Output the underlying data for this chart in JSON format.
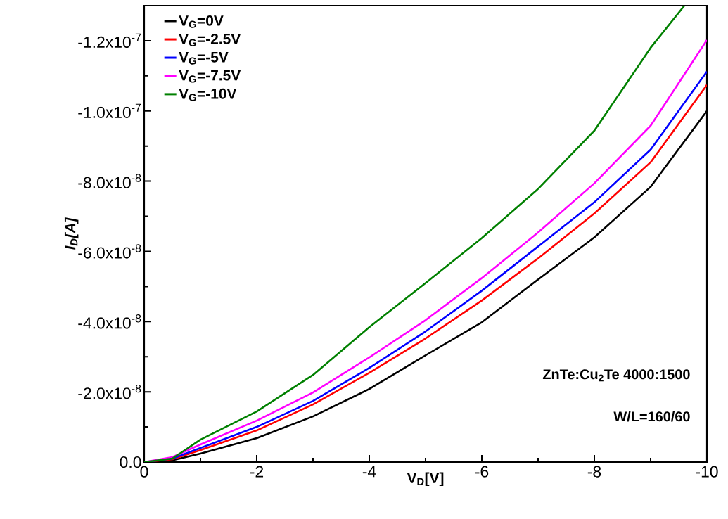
{
  "chart_data": {
    "type": "line",
    "xlabel": "V$_{D}$[V]",
    "ylabel": "I$_{D}$[A]",
    "x": [
      0,
      -0.5,
      -1,
      -2,
      -3,
      -4,
      -5,
      -6,
      -7,
      -8,
      -9,
      -10
    ],
    "xlim": [
      0,
      -10
    ],
    "ylim": [
      0,
      -1.3e-07
    ],
    "xticks": [
      0,
      -2,
      -4,
      -6,
      -8,
      -10
    ],
    "yticks": [
      {
        "value": 0,
        "label": "0.0"
      },
      {
        "value": -2e-08,
        "label": "-2.0x10$^{-8}$"
      },
      {
        "value": -4e-08,
        "label": "-4.0x10$^{-8}$"
      },
      {
        "value": -6e-08,
        "label": "-6.0x10$^{-8}$"
      },
      {
        "value": -8e-08,
        "label": "-8.0x10$^{-8}$"
      },
      {
        "value": -1e-07,
        "label": "-1.0x10$^{-7}$"
      },
      {
        "value": -1.2e-07,
        "label": "-1.2x10$^{-7}$"
      }
    ],
    "series": [
      {
        "name": "V$_{G}$=0V",
        "color": "#000000",
        "values": [
          0,
          -5e-10,
          -2.4e-09,
          -6.8e-09,
          -1.3e-08,
          -2.08e-08,
          -3.04e-08,
          -3.98e-08,
          -5.2e-08,
          -6.4e-08,
          -7.84e-08,
          -1e-07
        ]
      },
      {
        "name": "V$_{G}$=-2.5V",
        "color": "#ff0000",
        "values": [
          0,
          -8e-10,
          -3.4e-09,
          -9e-09,
          -1.64e-08,
          -2.54e-08,
          -3.52e-08,
          -4.6e-08,
          -5.8e-08,
          -7.08e-08,
          -8.54e-08,
          -1.074e-07
        ]
      },
      {
        "name": "V$_{G}$=-5V",
        "color": "#0000ff",
        "values": [
          0,
          -1e-09,
          -4e-09,
          -1e-08,
          -1.74e-08,
          -2.68e-08,
          -3.72e-08,
          -4.88e-08,
          -6.14e-08,
          -7.4e-08,
          -8.9e-08,
          -1.112e-07
        ]
      },
      {
        "name": "V$_{G}$=-7.5V",
        "color": "#ff00ff",
        "values": [
          0,
          -1.4e-09,
          -5e-09,
          -1.18e-08,
          -1.98e-08,
          -2.98e-08,
          -4.04e-08,
          -5.24e-08,
          -6.54e-08,
          -7.94e-08,
          -9.58e-08,
          -1.202e-07
        ]
      },
      {
        "name": "V$_{G}$=-10V",
        "color": "#008000",
        "x": [
          0,
          -0.5,
          -1,
          -2,
          -3,
          -4,
          -5,
          -6,
          -7,
          -8,
          -9,
          -9.6
        ],
        "values": [
          0,
          -1e-09,
          -6.4e-09,
          -1.44e-08,
          -2.48e-08,
          -3.84e-08,
          -5.1e-08,
          -6.38e-08,
          -7.78e-08,
          -9.44e-08,
          -1.18e-07,
          -1.3e-07
        ]
      }
    ],
    "legend": "top left",
    "annotations": [
      "ZnTe:Cu$_{2}$Te 4000:1500",
      "W/L=160/60"
    ]
  }
}
